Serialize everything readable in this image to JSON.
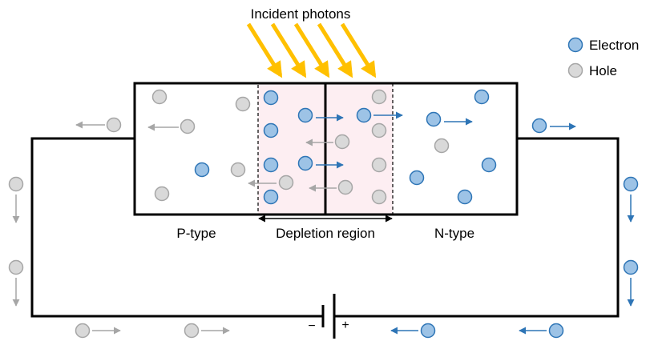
{
  "labels": {
    "incident_photons": "Incident photons",
    "p_type": "P-type",
    "depletion_region": "Depletion region",
    "n_type": "N-type",
    "minus": "−",
    "plus": "+"
  },
  "legend": {
    "electron": "Electron",
    "hole": "Hole"
  },
  "colors": {
    "electron_fill": "#9dc3e6",
    "electron_stroke": "#2e75b6",
    "electron_arrow": "#2e75b6",
    "hole_fill": "#d9d9d9",
    "hole_stroke": "#a6a6a6",
    "hole_arrow": "#a6a6a6",
    "photon": "#ffc000",
    "depletion_fill": "#fdeef2",
    "circuit": "#000000"
  }
}
